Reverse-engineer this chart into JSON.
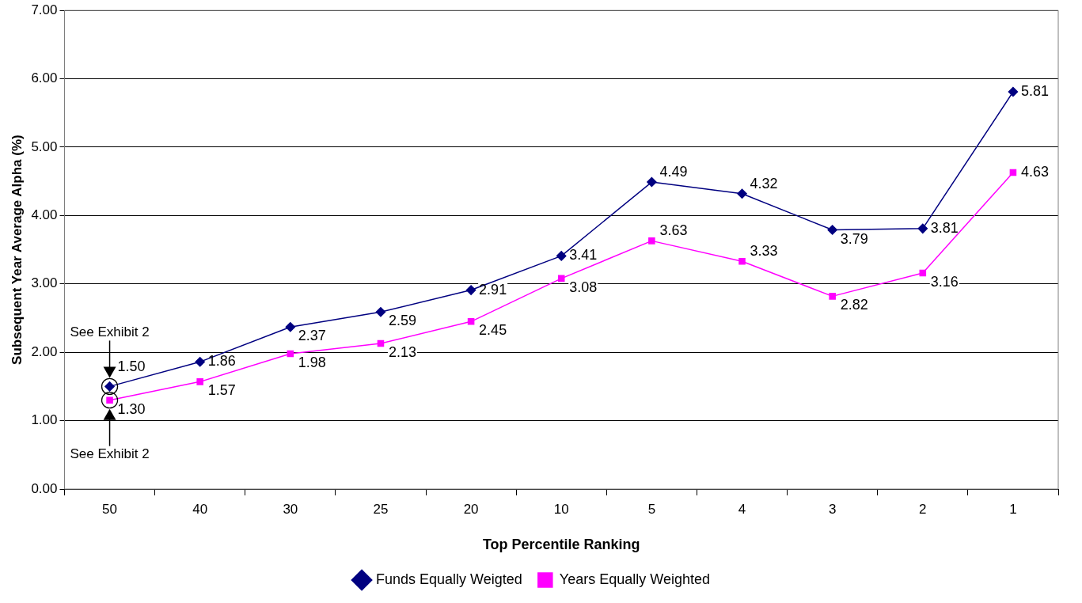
{
  "chart_data": {
    "type": "line",
    "xlabel": "Top Percentile Ranking",
    "ylabel": "Subsequent Year Average Alpha (%)",
    "categories": [
      "50",
      "40",
      "30",
      "25",
      "20",
      "10",
      "5",
      "4",
      "3",
      "2",
      "1"
    ],
    "series": [
      {
        "name": "Funds Equally Weigted",
        "color": "#000080",
        "marker": "diamond",
        "values": [
          1.5,
          1.86,
          2.37,
          2.59,
          2.91,
          3.41,
          4.49,
          4.32,
          3.79,
          3.81,
          5.81
        ],
        "value_labels": [
          "1.50",
          "1.86",
          "2.37",
          "2.59",
          "2.91",
          "3.41",
          "4.49",
          "4.32",
          "3.79",
          "3.81",
          "5.81"
        ]
      },
      {
        "name": "Years Equally Weighted",
        "color": "#ff00ff",
        "marker": "square",
        "values": [
          1.3,
          1.57,
          1.98,
          2.13,
          2.45,
          3.08,
          3.63,
          3.33,
          2.82,
          3.16,
          4.63
        ],
        "value_labels": [
          "1.30",
          "1.57",
          "1.98",
          "2.13",
          "2.45",
          "3.08",
          "3.63",
          "3.33",
          "2.82",
          "3.16",
          "4.63"
        ]
      }
    ],
    "ylim": [
      0,
      7
    ],
    "yticks": [
      {
        "value": 0,
        "label": "0.00"
      },
      {
        "value": 1,
        "label": "1.00"
      },
      {
        "value": 2,
        "label": "2.00"
      },
      {
        "value": 3,
        "label": "3.00"
      },
      {
        "value": 4,
        "label": "4.00"
      },
      {
        "value": 5,
        "label": "5.00"
      },
      {
        "value": 6,
        "label": "6.00"
      },
      {
        "value": 7,
        "label": "7.00"
      }
    ],
    "grid": "y",
    "legend": "bottom",
    "line_style": "solid",
    "annotations": [
      "See Exhibit 2",
      "See Exhibit 2"
    ]
  }
}
